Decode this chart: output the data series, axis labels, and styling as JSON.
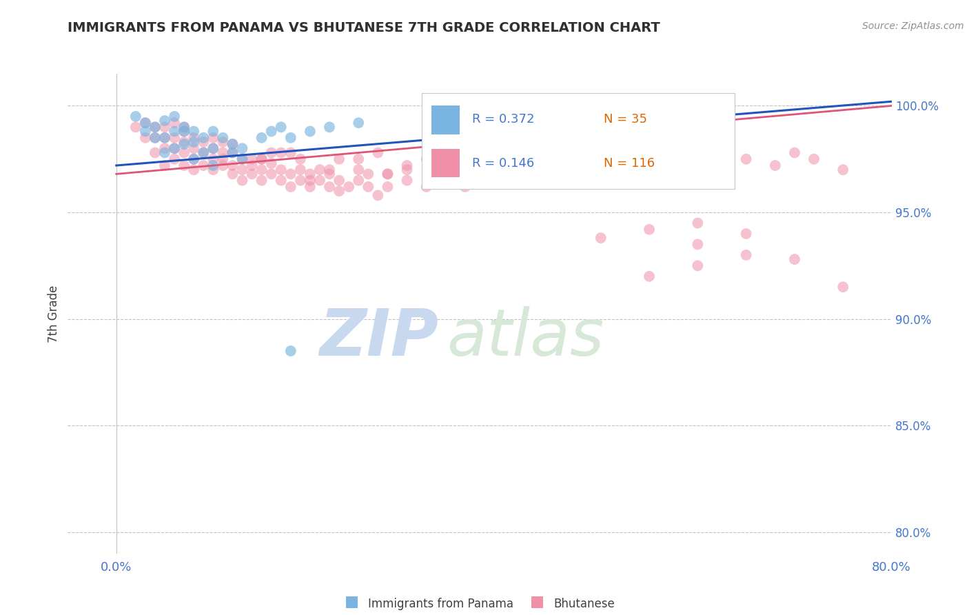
{
  "title": "IMMIGRANTS FROM PANAMA VS BHUTANESE 7TH GRADE CORRELATION CHART",
  "source_text": "Source: ZipAtlas.com",
  "ylabel": "7th Grade",
  "right_ytick_vals": [
    80.0,
    85.0,
    90.0,
    95.0,
    100.0
  ],
  "right_ytick_labels": [
    "80.0%",
    "85.0%",
    "90.0%",
    "95.0%",
    "100.0%"
  ],
  "xlim": [
    -0.005,
    0.08
  ],
  "ylim": [
    79.0,
    101.5
  ],
  "blue_R": 0.372,
  "blue_N": 35,
  "pink_R": 0.146,
  "pink_N": 116,
  "blue_color": "#7ab4e0",
  "pink_color": "#f090a8",
  "trend_blue_color": "#2255bb",
  "trend_pink_color": "#dd5577",
  "grid_color": "#c0c0cc",
  "title_color": "#303030",
  "axis_label_color": "#4477cc",
  "watermark_zip_color": "#c8d8ee",
  "watermark_atlas_color": "#c8d8ee",
  "background_color": "#ffffff",
  "blue_scatter_x": [
    0.002,
    0.003,
    0.003,
    0.004,
    0.004,
    0.005,
    0.005,
    0.005,
    0.006,
    0.006,
    0.006,
    0.007,
    0.007,
    0.007,
    0.008,
    0.008,
    0.008,
    0.009,
    0.009,
    0.01,
    0.01,
    0.01,
    0.011,
    0.012,
    0.012,
    0.013,
    0.013,
    0.015,
    0.016,
    0.017,
    0.018,
    0.02,
    0.022,
    0.025,
    0.018
  ],
  "blue_scatter_y": [
    99.5,
    98.8,
    99.2,
    98.5,
    99.0,
    97.8,
    98.5,
    99.3,
    98.0,
    98.8,
    99.5,
    98.2,
    98.8,
    99.0,
    97.5,
    98.3,
    98.8,
    97.8,
    98.5,
    97.2,
    98.0,
    98.8,
    98.5,
    97.8,
    98.2,
    97.5,
    98.0,
    98.5,
    98.8,
    99.0,
    98.5,
    98.8,
    99.0,
    99.2,
    88.5
  ],
  "pink_scatter_x": [
    0.002,
    0.003,
    0.003,
    0.004,
    0.004,
    0.004,
    0.005,
    0.005,
    0.005,
    0.005,
    0.006,
    0.006,
    0.006,
    0.006,
    0.007,
    0.007,
    0.007,
    0.007,
    0.007,
    0.008,
    0.008,
    0.008,
    0.008,
    0.009,
    0.009,
    0.009,
    0.01,
    0.01,
    0.01,
    0.01,
    0.011,
    0.011,
    0.011,
    0.012,
    0.012,
    0.012,
    0.012,
    0.013,
    0.013,
    0.014,
    0.014,
    0.015,
    0.015,
    0.015,
    0.016,
    0.016,
    0.017,
    0.017,
    0.018,
    0.018,
    0.019,
    0.019,
    0.02,
    0.02,
    0.021,
    0.021,
    0.022,
    0.022,
    0.023,
    0.023,
    0.024,
    0.025,
    0.025,
    0.026,
    0.026,
    0.027,
    0.028,
    0.028,
    0.03,
    0.03,
    0.032,
    0.033,
    0.035,
    0.036,
    0.038,
    0.04,
    0.042,
    0.045,
    0.02,
    0.022,
    0.025,
    0.028,
    0.03,
    0.015,
    0.017,
    0.019,
    0.013,
    0.014,
    0.016,
    0.011,
    0.018,
    0.023,
    0.027,
    0.032,
    0.038,
    0.043,
    0.048,
    0.053,
    0.055,
    0.06,
    0.062,
    0.065,
    0.068,
    0.07,
    0.072,
    0.075,
    0.055,
    0.06,
    0.065,
    0.07,
    0.075,
    0.06,
    0.065,
    0.05,
    0.055,
    0.06
  ],
  "pink_scatter_y": [
    99.0,
    98.5,
    99.2,
    97.8,
    98.5,
    99.0,
    97.2,
    98.0,
    98.5,
    99.0,
    97.5,
    98.0,
    98.5,
    99.2,
    97.2,
    97.8,
    98.3,
    98.8,
    99.0,
    97.0,
    97.5,
    98.0,
    98.5,
    97.2,
    97.8,
    98.3,
    97.0,
    97.5,
    98.0,
    98.5,
    97.2,
    97.8,
    98.3,
    96.8,
    97.2,
    97.8,
    98.2,
    97.0,
    97.5,
    96.8,
    97.5,
    96.5,
    97.0,
    97.5,
    96.8,
    97.3,
    96.5,
    97.0,
    96.2,
    96.8,
    96.5,
    97.0,
    96.2,
    96.8,
    96.5,
    97.0,
    96.2,
    96.8,
    96.0,
    96.5,
    96.2,
    96.5,
    97.0,
    96.2,
    96.8,
    95.8,
    96.2,
    96.8,
    96.5,
    97.0,
    96.2,
    96.8,
    96.5,
    96.2,
    96.8,
    96.5,
    97.0,
    96.5,
    96.5,
    97.0,
    97.5,
    96.8,
    97.2,
    97.5,
    97.8,
    97.5,
    96.5,
    97.2,
    97.8,
    97.5,
    97.8,
    97.5,
    97.8,
    97.5,
    96.8,
    97.0,
    97.5,
    97.8,
    97.0,
    97.5,
    97.8,
    97.5,
    97.2,
    97.8,
    97.5,
    97.0,
    92.0,
    92.5,
    93.0,
    92.8,
    91.5,
    94.5,
    94.0,
    93.8,
    94.2,
    93.5
  ],
  "trend_blue_x0": 0.0,
  "trend_blue_y0": 97.2,
  "trend_blue_x1": 0.08,
  "trend_blue_y1": 100.2,
  "trend_pink_x0": 0.0,
  "trend_pink_y0": 96.8,
  "trend_pink_x1": 0.08,
  "trend_pink_y1": 100.0
}
